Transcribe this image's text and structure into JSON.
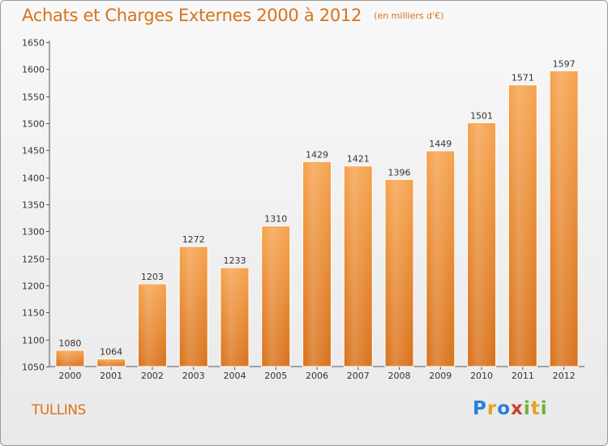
{
  "title": "Achats et Charges Externes 2000 à 2012",
  "unit": "(en milliers d'€)",
  "commune": "TULLINS",
  "brand": {
    "letters": [
      "P",
      "r",
      "o",
      "x",
      "i",
      "t",
      "i"
    ],
    "colors": [
      "#2a7fd4",
      "#e8a21a",
      "#2a7fd4",
      "#d63b2f",
      "#6fb23a",
      "#e8a21a",
      "#6fb23a"
    ]
  },
  "colors": {
    "bar_light": "#f6a34e",
    "bar_dark": "#d9721b",
    "accent": "#d9721b"
  },
  "chart_data": {
    "type": "bar",
    "categories": [
      "2000",
      "2001",
      "2002",
      "2003",
      "2004",
      "2005",
      "2006",
      "2007",
      "2008",
      "2009",
      "2010",
      "2011",
      "2012"
    ],
    "values": [
      1080,
      1064,
      1203,
      1272,
      1233,
      1310,
      1429,
      1421,
      1396,
      1449,
      1501,
      1571,
      1597
    ],
    "ylim": [
      1050,
      1650
    ],
    "yticks": [
      1050,
      1100,
      1150,
      1200,
      1250,
      1300,
      1350,
      1400,
      1450,
      1500,
      1550,
      1600,
      1650
    ],
    "title": "Achats et Charges Externes 2000 à 2012",
    "xlabel": "",
    "ylabel": "",
    "grid": false,
    "data_labels": true
  }
}
